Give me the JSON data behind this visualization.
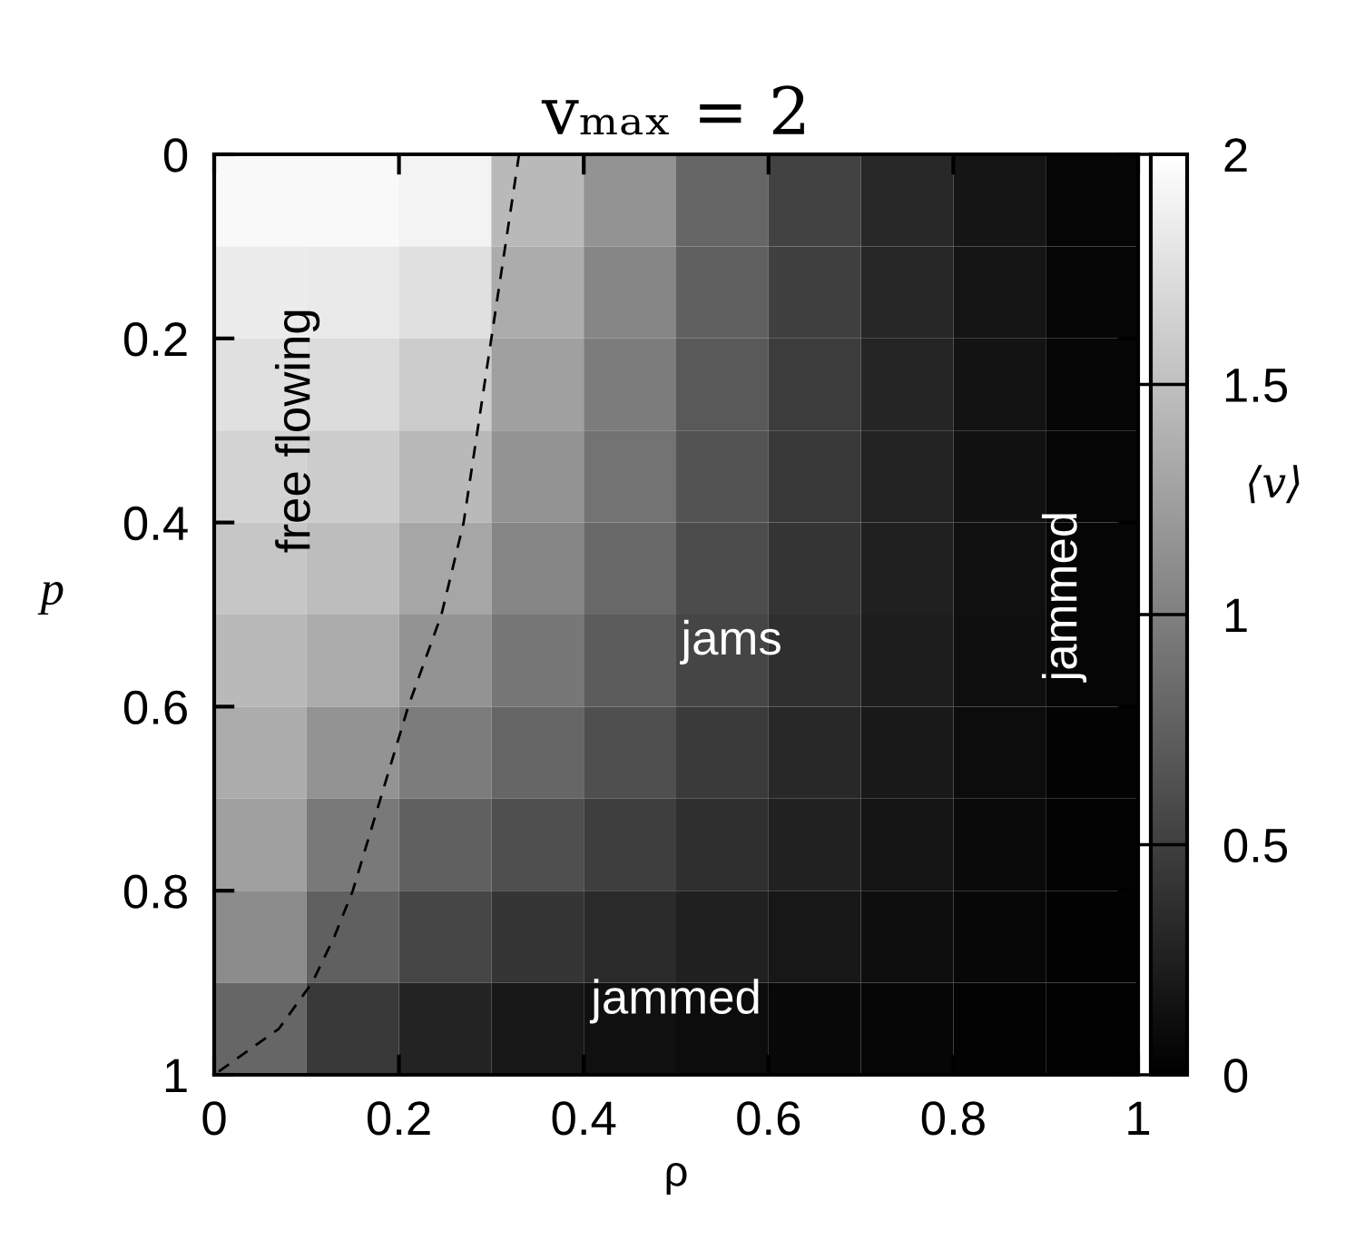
{
  "chart_data": {
    "type": "heatmap",
    "title": "vₘₐₓ = 2",
    "xlabel": "ρ",
    "ylabel": "p",
    "clabel": "⟨v⟩",
    "xlim": [
      0,
      1
    ],
    "xticks": [
      0,
      0.2,
      0.4,
      0.6,
      0.8,
      1
    ],
    "ylim": [
      1,
      0
    ],
    "yticks": [
      0,
      0.2,
      0.4,
      0.6,
      0.8,
      1
    ],
    "cells": [
      [
        1.95,
        1.95,
        1.9,
        1.45,
        1.15,
        0.8,
        0.52,
        0.32,
        0.17,
        0.05
      ],
      [
        1.85,
        1.83,
        1.75,
        1.35,
        1.05,
        0.75,
        0.5,
        0.3,
        0.16,
        0.05
      ],
      [
        1.75,
        1.72,
        1.6,
        1.25,
        0.97,
        0.7,
        0.47,
        0.29,
        0.15,
        0.05
      ],
      [
        1.65,
        1.6,
        1.45,
        1.15,
        0.9,
        0.65,
        0.44,
        0.27,
        0.14,
        0.04
      ],
      [
        1.55,
        1.48,
        1.3,
        1.05,
        0.82,
        0.6,
        0.41,
        0.25,
        0.13,
        0.04
      ],
      [
        1.45,
        1.35,
        1.15,
        0.93,
        0.72,
        0.54,
        0.37,
        0.23,
        0.12,
        0.04
      ],
      [
        1.35,
        1.15,
        0.97,
        0.8,
        0.62,
        0.46,
        0.32,
        0.2,
        0.1,
        0.03
      ],
      [
        1.25,
        0.95,
        0.76,
        0.62,
        0.49,
        0.37,
        0.26,
        0.16,
        0.08,
        0.03
      ],
      [
        1.1,
        0.75,
        0.55,
        0.42,
        0.33,
        0.25,
        0.18,
        0.11,
        0.06,
        0.02
      ],
      [
        0.8,
        0.45,
        0.28,
        0.18,
        0.13,
        0.1,
        0.07,
        0.05,
        0.03,
        0.01
      ]
    ],
    "clim": [
      0,
      2
    ],
    "cticks": [
      0,
      0.5,
      1,
      1.5,
      2
    ],
    "series": [
      {
        "type": "line",
        "color": "#000000",
        "line_style": "dashed",
        "x": [
          0.33,
          0.3,
          0.27,
          0.246,
          0.21,
          0.18,
          0.15,
          0.13,
          0.106,
          0.07,
          0
        ],
        "values": [
          0,
          0.2,
          0.4,
          0.5,
          0.6,
          0.7,
          0.8,
          0.85,
          0.9,
          0.95,
          1
        ]
      }
    ],
    "annotations": [
      "free flowing",
      "jams",
      "jammed",
      "jammed"
    ]
  }
}
